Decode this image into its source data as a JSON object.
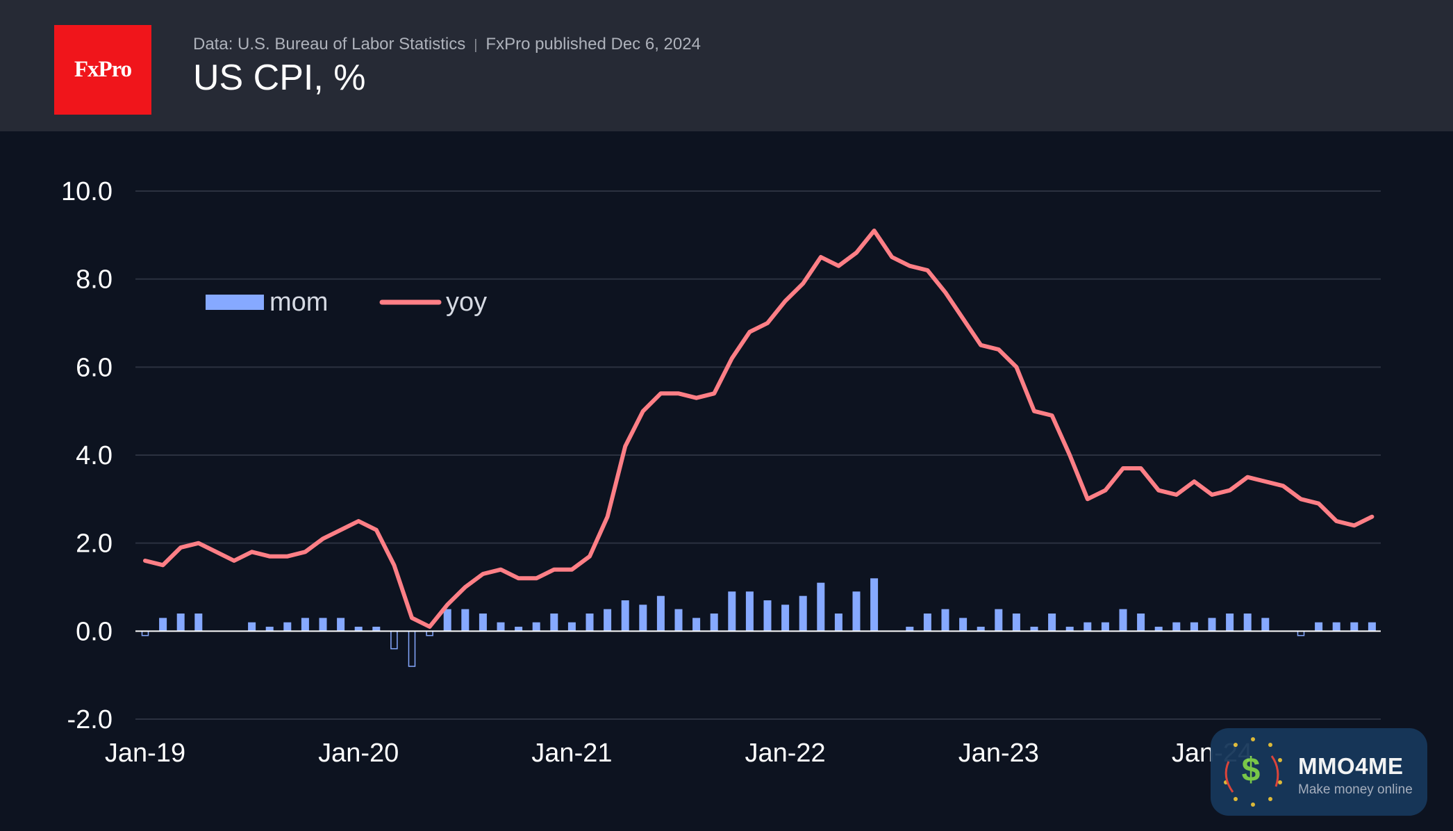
{
  "header": {
    "logo_text": "FxPro",
    "source": "Data: U.S. Bureau of Labor Statistics",
    "separator": "|",
    "published": "FxPro published Dec 6, 2024",
    "title": "US CPI, %"
  },
  "watermark": {
    "name": "MMO4ME",
    "tagline": "Make money online",
    "icon": "dollar-coin-icon"
  },
  "colors": {
    "background": "#0d1320",
    "header_bg": "#262a35",
    "logo_bg": "#f0151b",
    "mom": "#86a9ff",
    "yoy": "#ff7f86",
    "grid": "#2b3140",
    "zero_line": "#ffffff",
    "text": "#ffffff"
  },
  "chart_data": {
    "type": "bar+line",
    "title": "US CPI, %",
    "x_ticks": [
      "Jan-19",
      "Jan-20",
      "Jan-21",
      "Jan-22",
      "Jan-23",
      "Jan-24"
    ],
    "y_ticks": [
      "10.0",
      "8.0",
      "6.0",
      "4.0",
      "2.0",
      "0.0",
      "-2.0"
    ],
    "ylim": [
      -2.0,
      10.0
    ],
    "grid": true,
    "legend": {
      "placement": "top-left",
      "entries": [
        "mom",
        "yoy"
      ]
    },
    "x_start": "2019-01",
    "series": [
      {
        "name": "mom",
        "kind": "bar",
        "values": [
          -0.1,
          0.3,
          0.4,
          0.4,
          0.0,
          0.0,
          0.2,
          0.1,
          0.2,
          0.3,
          0.3,
          0.3,
          0.1,
          0.1,
          -0.4,
          -0.8,
          -0.1,
          0.5,
          0.5,
          0.4,
          0.2,
          0.1,
          0.2,
          0.4,
          0.2,
          0.4,
          0.5,
          0.7,
          0.6,
          0.8,
          0.5,
          0.3,
          0.4,
          0.9,
          0.9,
          0.7,
          0.6,
          0.8,
          1.1,
          0.4,
          0.9,
          1.2,
          0.0,
          0.1,
          0.4,
          0.5,
          0.3,
          0.1,
          0.5,
          0.4,
          0.1,
          0.4,
          0.1,
          0.2,
          0.2,
          0.5,
          0.4,
          0.1,
          0.2,
          0.2,
          0.3,
          0.4,
          0.4,
          0.3,
          0.0,
          -0.1,
          0.2,
          0.2,
          0.2,
          0.2
        ]
      },
      {
        "name": "yoy",
        "kind": "line",
        "values": [
          1.6,
          1.5,
          1.9,
          2.0,
          1.8,
          1.6,
          1.8,
          1.7,
          1.7,
          1.8,
          2.1,
          2.3,
          2.5,
          2.3,
          1.5,
          0.3,
          0.1,
          0.6,
          1.0,
          1.3,
          1.4,
          1.2,
          1.2,
          1.4,
          1.4,
          1.7,
          2.6,
          4.2,
          5.0,
          5.4,
          5.4,
          5.3,
          5.4,
          6.2,
          6.8,
          7.0,
          7.5,
          7.9,
          8.5,
          8.3,
          8.6,
          9.1,
          8.5,
          8.3,
          8.2,
          7.7,
          7.1,
          6.5,
          6.4,
          6.0,
          5.0,
          4.9,
          4.0,
          3.0,
          3.2,
          3.7,
          3.7,
          3.2,
          3.1,
          3.4,
          3.1,
          3.2,
          3.5,
          3.4,
          3.3,
          3.0,
          2.9,
          2.5,
          2.4,
          2.6
        ]
      }
    ]
  }
}
